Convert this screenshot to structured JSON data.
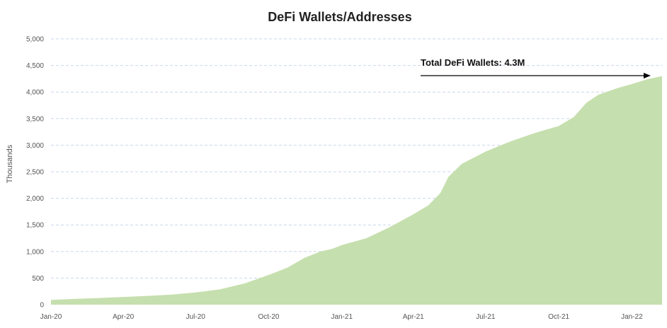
{
  "chart_data": {
    "type": "area",
    "title": "DeFi Wallets/Addresses",
    "xlabel": "",
    "ylabel": "Thousands",
    "ylim": [
      0,
      5000
    ],
    "yticks": [
      0,
      500,
      1000,
      1500,
      2000,
      2500,
      3000,
      3500,
      4000,
      4500,
      5000
    ],
    "ytick_labels": [
      "0",
      "500",
      "1,000",
      "1,500",
      "2,000",
      "2,500",
      "3,000",
      "3,500",
      "4,000",
      "4,500",
      "5,000"
    ],
    "xticks": [
      {
        "label": "Jan-20",
        "date": "2020-01-01"
      },
      {
        "label": "Apr-20",
        "date": "2020-04-01"
      },
      {
        "label": "Jul-20",
        "date": "2020-07-01"
      },
      {
        "label": "Oct-20",
        "date": "2020-10-01"
      },
      {
        "label": "Jan-21",
        "date": "2021-01-01"
      },
      {
        "label": "Apr-21",
        "date": "2021-04-01"
      },
      {
        "label": "Jul-21",
        "date": "2021-07-01"
      },
      {
        "label": "Oct-21",
        "date": "2021-10-01"
      },
      {
        "label": "Jan-22",
        "date": "2022-01-01"
      }
    ],
    "grid": true,
    "legend": "none",
    "fill_color": "#c6dfae",
    "grid_color": "#c9d7ec",
    "annotation": {
      "text": "Total DeFi Wallets: 4.3M",
      "points_to_date": "2022-02-08",
      "arrow": true
    },
    "series": [
      {
        "points": [
          [
            "2020-01-01",
            90
          ],
          [
            "2020-02-01",
            110
          ],
          [
            "2020-03-01",
            125
          ],
          [
            "2020-04-01",
            145
          ],
          [
            "2020-05-01",
            165
          ],
          [
            "2020-06-01",
            190
          ],
          [
            "2020-07-01",
            230
          ],
          [
            "2020-08-01",
            290
          ],
          [
            "2020-09-01",
            400
          ],
          [
            "2020-10-01",
            560
          ],
          [
            "2020-10-25",
            700
          ],
          [
            "2020-11-15",
            880
          ],
          [
            "2020-12-05",
            1000
          ],
          [
            "2020-12-20",
            1050
          ],
          [
            "2021-01-01",
            1120
          ],
          [
            "2021-02-01",
            1250
          ],
          [
            "2021-03-01",
            1450
          ],
          [
            "2021-04-01",
            1700
          ],
          [
            "2021-04-20",
            1870
          ],
          [
            "2021-05-05",
            2100
          ],
          [
            "2021-05-15",
            2400
          ],
          [
            "2021-06-01",
            2650
          ],
          [
            "2021-07-01",
            2880
          ],
          [
            "2021-08-01",
            3070
          ],
          [
            "2021-09-01",
            3230
          ],
          [
            "2021-10-01",
            3360
          ],
          [
            "2021-10-20",
            3530
          ],
          [
            "2021-11-05",
            3800
          ],
          [
            "2021-11-20",
            3950
          ],
          [
            "2021-12-15",
            4080
          ],
          [
            "2022-01-01",
            4150
          ],
          [
            "2022-01-20",
            4240
          ],
          [
            "2022-02-08",
            4300
          ]
        ]
      }
    ]
  }
}
